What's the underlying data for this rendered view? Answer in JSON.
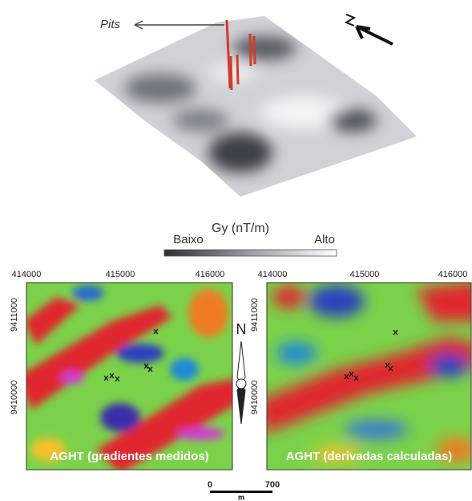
{
  "surface": {
    "label": "Pits"
  },
  "legend": {
    "title": "Gy (nT/m)",
    "low": "Baixo",
    "high": "Alto"
  },
  "maps": [
    {
      "x_labels": [
        "414000",
        "415000",
        "416000"
      ],
      "y_labels": [
        "9411000",
        "9410000"
      ],
      "caption": "AGHT (gradientes medidos)"
    },
    {
      "x_labels": [
        "414000",
        "415000",
        "416000"
      ],
      "y_labels": [
        "9411000",
        "9410000"
      ],
      "caption": "AGHT (derivadas calculadas)"
    }
  ],
  "north": "N",
  "scale_bar": {
    "start": "0",
    "end": "700",
    "unit": "m"
  }
}
